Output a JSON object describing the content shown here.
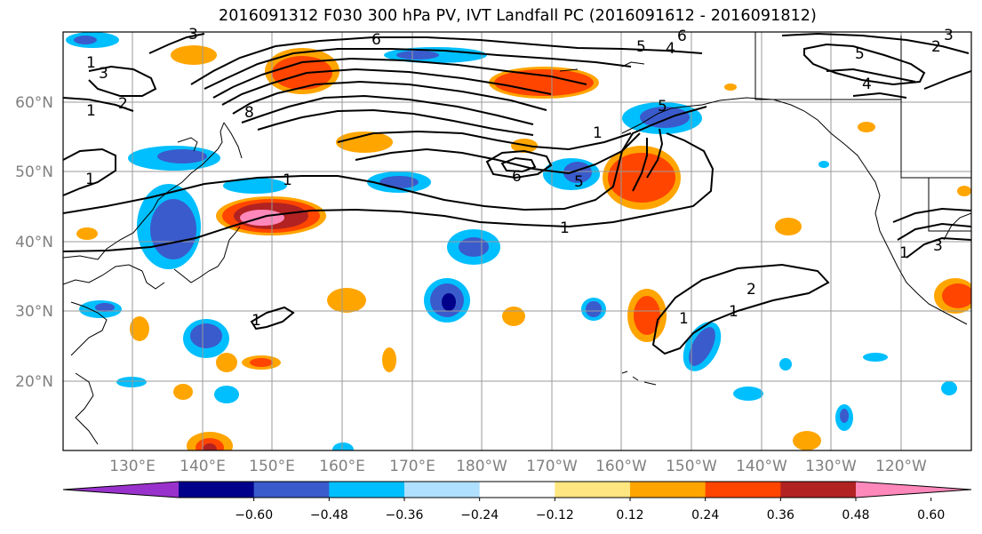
{
  "title": "2016091312 F030 300 hPa PV, IVT Landfall PC (2016091612 - 2016091812)",
  "latitude_labels": [
    "60°N",
    "50°N",
    "40°N",
    "30°N",
    "20°N"
  ],
  "longitude_labels": [
    "130°E",
    "140°E",
    "150°E",
    "160°E",
    "170°E",
    "180°W",
    "170°W",
    "160°W",
    "150°W",
    "140°W",
    "130°W",
    "120°W"
  ],
  "colorbar": {
    "ticks": [
      "−0.60",
      "−0.48",
      "−0.36",
      "−0.24",
      "−0.12",
      "0.12",
      "0.24",
      "0.36",
      "0.48",
      "0.60"
    ],
    "colors": [
      "#9932cc",
      "#00008b",
      "#3a5bcc",
      "#00bfff",
      "#b0e0ff",
      "#ffffff",
      "#ffe680",
      "#ffa500",
      "#ff4500",
      "#b22222",
      "#ff88bb"
    ]
  },
  "contour_labels": [
    "1",
    "3",
    "1",
    "2",
    "3",
    "6",
    "8",
    "6",
    "5",
    "4",
    "5",
    "3",
    "2",
    "5",
    "4",
    "1",
    "1",
    "6",
    "5",
    "1",
    "1",
    "1",
    "3",
    "1",
    "1",
    "2",
    "1"
  ]
}
